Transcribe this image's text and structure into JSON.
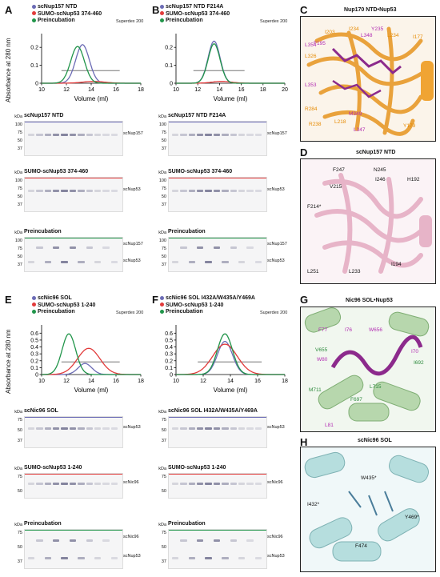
{
  "panels": {
    "A": {
      "letter": "A",
      "legend": [
        {
          "label": "scNup157 NTD",
          "color": "#6b6bb5"
        },
        {
          "label": "SUMO-scNup53 374-460",
          "color": "#e23b3b"
        },
        {
          "label": "Preincubation",
          "color": "#21954a"
        }
      ],
      "column": "Superdex 200"
    },
    "B": {
      "letter": "B",
      "legend": [
        {
          "label": "scNup157 NTD F214A",
          "color": "#6b6bb5"
        },
        {
          "label": "SUMO-scNup53 374-460",
          "color": "#e23b3b"
        },
        {
          "label": "Preincubation",
          "color": "#21954a"
        }
      ],
      "column": "Superdex 200"
    },
    "C": {
      "letter": "C",
      "title": "Nup170 NTD•Nup53"
    },
    "D": {
      "letter": "D",
      "title": "scNup157 NTD"
    },
    "E": {
      "letter": "E",
      "legend": [
        {
          "label": "scNic96 SOL",
          "color": "#6b6bb5"
        },
        {
          "label": "SUMO-scNup53 1-240",
          "color": "#e23b3b"
        },
        {
          "label": "Preincubation",
          "color": "#21954a"
        }
      ],
      "column": "Superdex 200"
    },
    "F": {
      "letter": "F",
      "legend": [
        {
          "label": "scNic96 SOL I432A/W435A/Y469A",
          "color": "#6b6bb5"
        },
        {
          "label": "SUMO-scNup53 1-240",
          "color": "#e23b3b"
        },
        {
          "label": "Preincubation",
          "color": "#21954a"
        }
      ],
      "column": "Superdex 200"
    },
    "G": {
      "letter": "G",
      "title": "Nic96 SOL•Nup53"
    },
    "H": {
      "letter": "H",
      "title": "scNic96 SOL"
    }
  },
  "axes": {
    "ylabel": "Absorbance at 280 nm",
    "xlabel": "Volume (ml)",
    "kda": "kDa"
  },
  "chart_data": [
    {
      "type": "line",
      "panel": "A",
      "x_ticks": [
        "10",
        "12",
        "14",
        "16",
        "18"
      ],
      "xlim": [
        10,
        18
      ],
      "y_ticks": [
        "0",
        "0.1",
        "0.2"
      ],
      "ylim": [
        0,
        0.25
      ],
      "series": [
        {
          "name": "scNup157 NTD",
          "peak_x": 13.3,
          "peak_y": 0.215
        },
        {
          "name": "SUMO-scNup53 374-460",
          "peak_x": 14.2,
          "peak_y": 0.01
        },
        {
          "name": "Preincubation",
          "peak_x": 12.9,
          "peak_y": 0.205
        }
      ]
    },
    {
      "type": "line",
      "panel": "B",
      "x_ticks": [
        "10",
        "12",
        "14",
        "16",
        "18",
        "20"
      ],
      "xlim": [
        10,
        20
      ],
      "y_ticks": [
        "0",
        "0.1",
        "0.2"
      ],
      "ylim": [
        0,
        0.25
      ],
      "series": [
        {
          "name": "scNup157 NTD F214A",
          "peak_x": 13.5,
          "peak_y": 0.235
        },
        {
          "name": "SUMO-scNup53 374-460",
          "peak_x": 14.2,
          "peak_y": 0.01
        },
        {
          "name": "Preincubation",
          "peak_x": 13.5,
          "peak_y": 0.22
        }
      ]
    },
    {
      "type": "line",
      "panel": "E",
      "x_ticks": [
        "10",
        "12",
        "14",
        "16",
        "18"
      ],
      "xlim": [
        10,
        18
      ],
      "y_ticks": [
        "0",
        "0.1",
        "0.2",
        "0.3",
        "0.4",
        "0.5",
        "0.6"
      ],
      "ylim": [
        0,
        0.65
      ],
      "series": [
        {
          "name": "scNic96 SOL",
          "peak_x": 13.5,
          "peak_y": 0.16
        },
        {
          "name": "SUMO-scNup53 1-240",
          "peak_x": 13.8,
          "peak_y": 0.38
        },
        {
          "name": "Preincubation",
          "peak_x": 12.2,
          "peak_y": 0.59
        }
      ]
    },
    {
      "type": "line",
      "panel": "F",
      "x_ticks": [
        "10",
        "12",
        "14",
        "16",
        "18"
      ],
      "xlim": [
        10,
        18
      ],
      "y_ticks": [
        "0",
        "0.1",
        "0.2",
        "0.3",
        "0.4",
        "0.5",
        "0.6"
      ],
      "ylim": [
        0,
        0.65
      ],
      "series": [
        {
          "name": "scNic96 SOL I432A/W435A/Y469A",
          "peak_x": 13.6,
          "peak_y": 0.48
        },
        {
          "name": "SUMO-scNup53 1-240",
          "peak_x": 13.6,
          "peak_y": 0.44
        },
        {
          "name": "Preincubation",
          "peak_x": 13.6,
          "peak_y": 0.59
        }
      ]
    }
  ],
  "gels": {
    "A1": {
      "title": "scNup157 NTD",
      "kda": [
        "100",
        "75",
        "50",
        "37"
      ],
      "labels": [
        "scNup157"
      ],
      "color": "#6b6bb5"
    },
    "A2": {
      "title": "SUMO-scNup53 374-460",
      "kda": [
        "100",
        "75",
        "50",
        "37"
      ],
      "labels": [
        "scNup53"
      ],
      "color": "#e23b3b"
    },
    "A3": {
      "title": "Preincubation",
      "kda": [
        "100",
        "75",
        "50",
        "37"
      ],
      "labels": [
        "scNup157",
        "scNup53"
      ],
      "color": "#21954a"
    },
    "B1": {
      "title": "scNup157 NTD F214A",
      "kda": [
        "100",
        "75",
        "50",
        "37"
      ],
      "labels": [
        "scNup157"
      ],
      "color": "#6b6bb5"
    },
    "B2": {
      "title": "SUMO-scNup53 374-460",
      "kda": [
        "100",
        "75",
        "50",
        "37"
      ],
      "labels": [
        "scNup53"
      ],
      "color": "#e23b3b"
    },
    "B3": {
      "title": "Preincubation",
      "kda": [
        "100",
        "75",
        "50",
        "37"
      ],
      "labels": [
        "scNup157",
        "scNup53"
      ],
      "color": "#21954a"
    },
    "E1": {
      "title": "scNic96 SOL",
      "kda": [
        "75",
        "50",
        "37"
      ],
      "labels": [
        "scNup53"
      ],
      "color": "#6b6bb5"
    },
    "E2": {
      "title": "SUMO-scNup53 1-240",
      "kda": [
        "75",
        "50"
      ],
      "labels": [
        "scNic96"
      ],
      "color": "#e23b3b"
    },
    "E3": {
      "title": "Preincubation",
      "kda": [
        "75",
        "50",
        "37"
      ],
      "labels": [
        "scNic96",
        "scNup53"
      ],
      "color": "#21954a"
    },
    "F1": {
      "title": "scNic96 SOL I432A/W435A/Y469A",
      "kda": [
        "75",
        "50",
        "37"
      ],
      "labels": [
        "scNup53"
      ],
      "color": "#6b6bb5"
    },
    "F2": {
      "title": "SUMO-scNup53 1-240",
      "kda": [
        "75",
        "50"
      ],
      "labels": [
        "scNic96"
      ],
      "color": "#e23b3b"
    },
    "F3": {
      "title": "Preincubation",
      "kda": [
        "75",
        "50",
        "37"
      ],
      "labels": [
        "scNic96",
        "scNup53"
      ],
      "color": "#21954a"
    }
  },
  "structures": {
    "C": {
      "residues_orange": [
        "I203",
        "I234",
        "L234",
        "I177",
        "L326",
        "R284",
        "R238",
        "L218",
        "Y179"
      ],
      "residues_magenta": [
        "F195",
        "Y235",
        "L348",
        "L354",
        "L353",
        "M349",
        "L347"
      ]
    },
    "D": {
      "residues": [
        "F247",
        "N245",
        "I246",
        "H192",
        "V215",
        "F214*",
        "L251",
        "L233",
        "I194"
      ]
    },
    "G": {
      "residues_magenta": [
        "F77",
        "I76",
        "W656",
        "I70",
        "W80",
        "L81"
      ],
      "residues_green": [
        "V655",
        "I692",
        "M711",
        "L715",
        "F697"
      ]
    },
    "H": {
      "residues": [
        "W435*",
        "I432*",
        "Y469*",
        "F474"
      ]
    }
  }
}
